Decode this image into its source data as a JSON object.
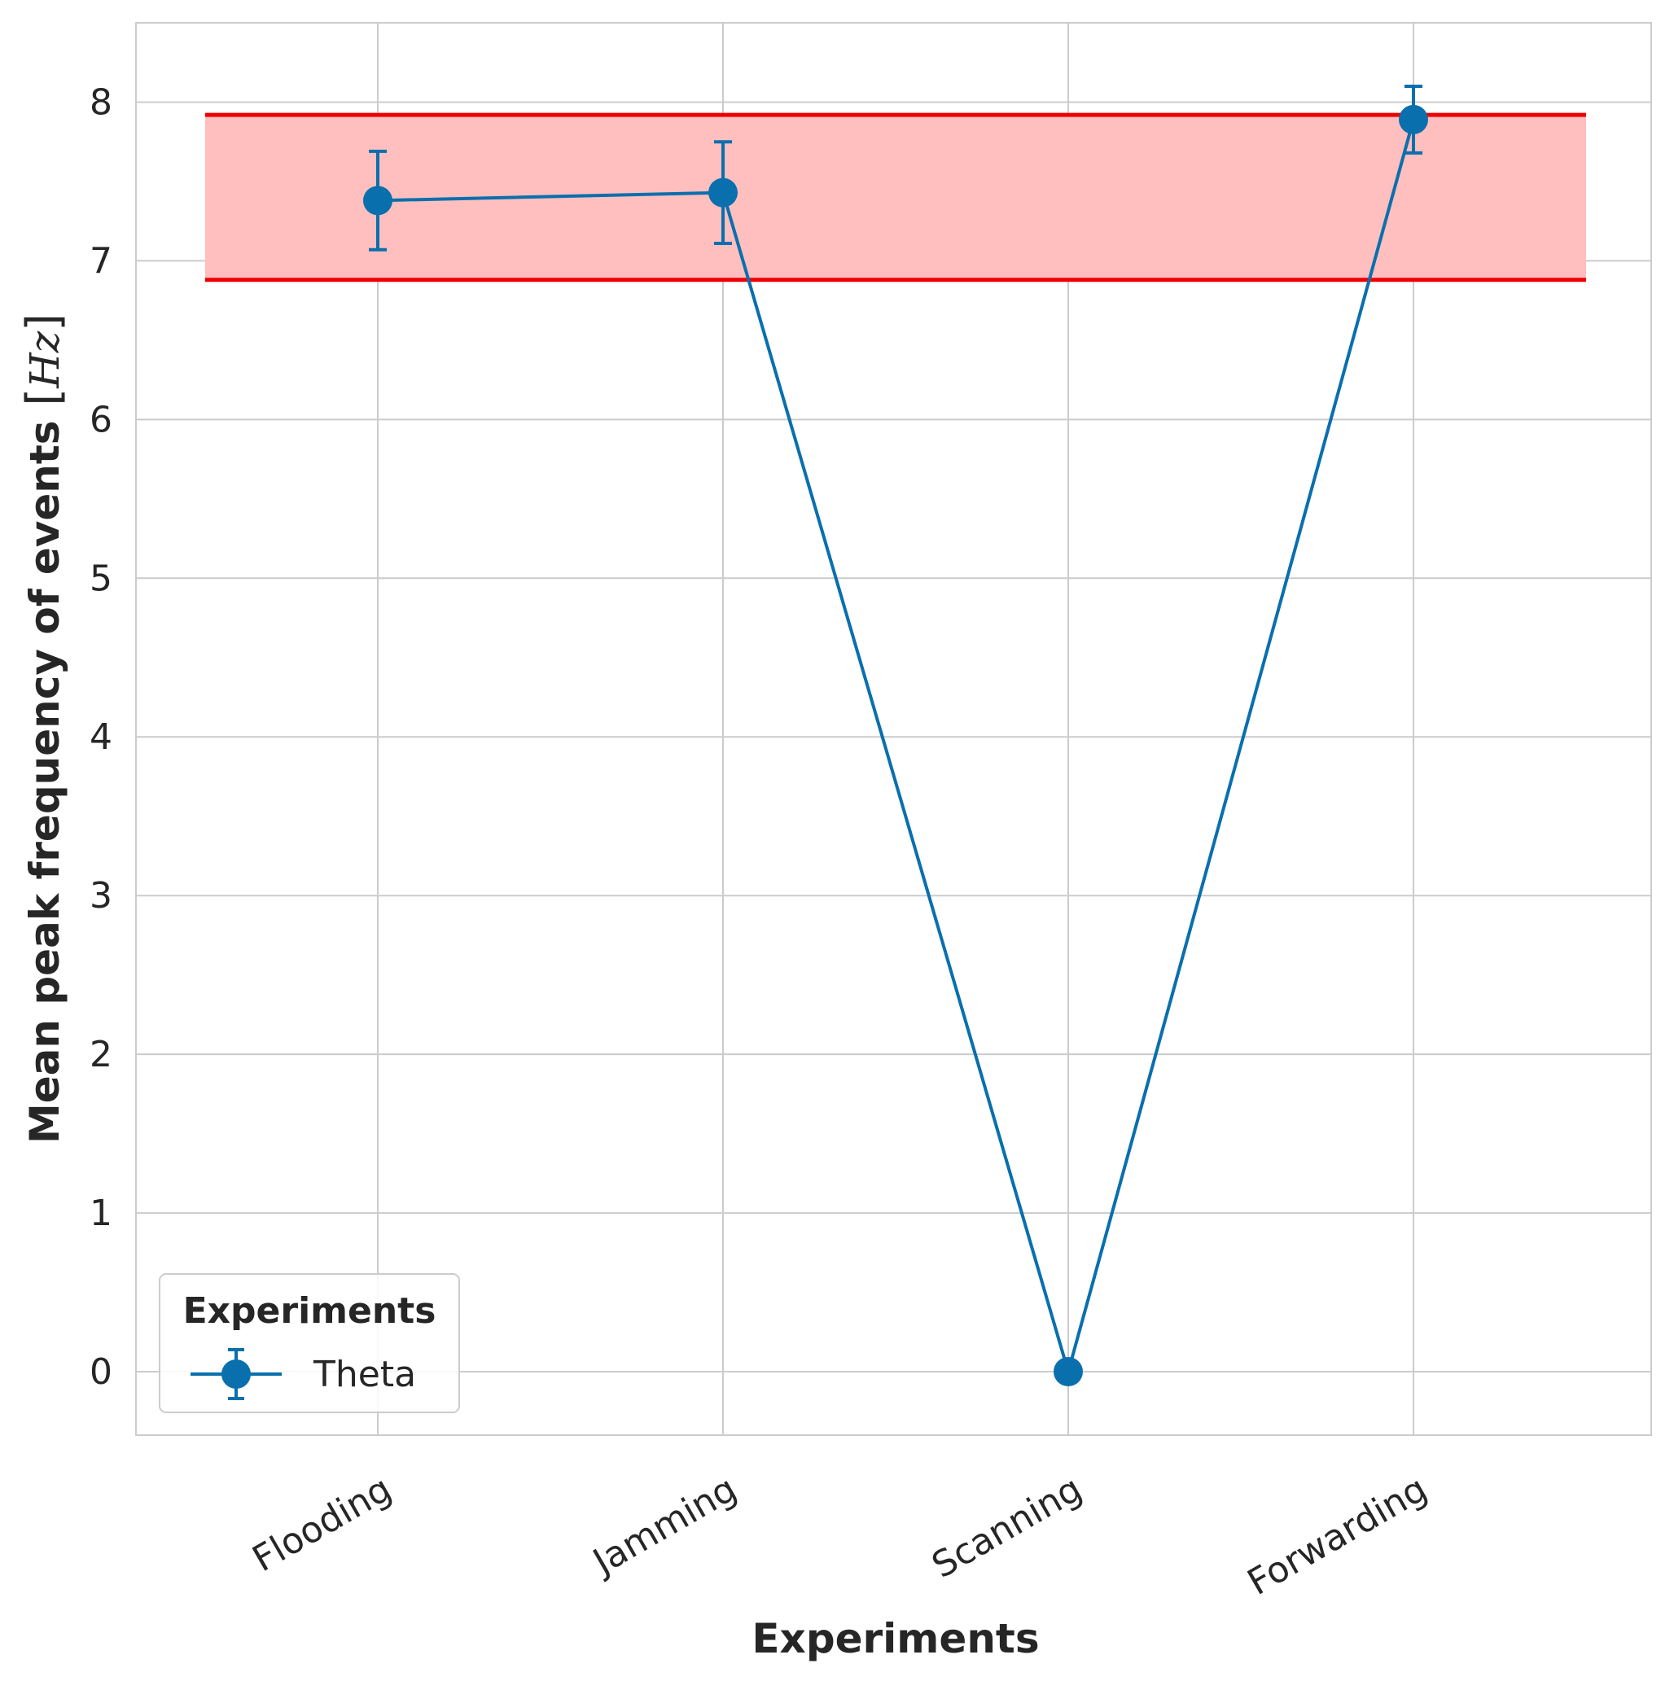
{
  "chart_data": {
    "type": "line",
    "xlabel": "Experiments",
    "ylabel": "Mean peak frequency of events",
    "ylabel_unit": "Hz",
    "categories": [
      "Flooding",
      "Jamming",
      "Scanning",
      "Forwarding"
    ],
    "ylim": [
      -0.4,
      8.5
    ],
    "yticks": [
      0,
      1,
      2,
      3,
      4,
      5,
      6,
      7,
      8
    ],
    "grid": true,
    "legend": {
      "title": "Experiments",
      "placement": "lower-left"
    },
    "series": [
      {
        "name": "Theta",
        "color": "#0a6fad",
        "values": [
          7.38,
          7.43,
          0.0,
          7.89
        ],
        "error": [
          0.31,
          0.32,
          0.0,
          0.21
        ]
      }
    ],
    "band": {
      "y_low": 6.88,
      "y_high": 7.92,
      "x_from_category": -0.5,
      "x_to_category": 3.5,
      "fill": "#ffbfbf",
      "edge": "#ee0000"
    }
  }
}
